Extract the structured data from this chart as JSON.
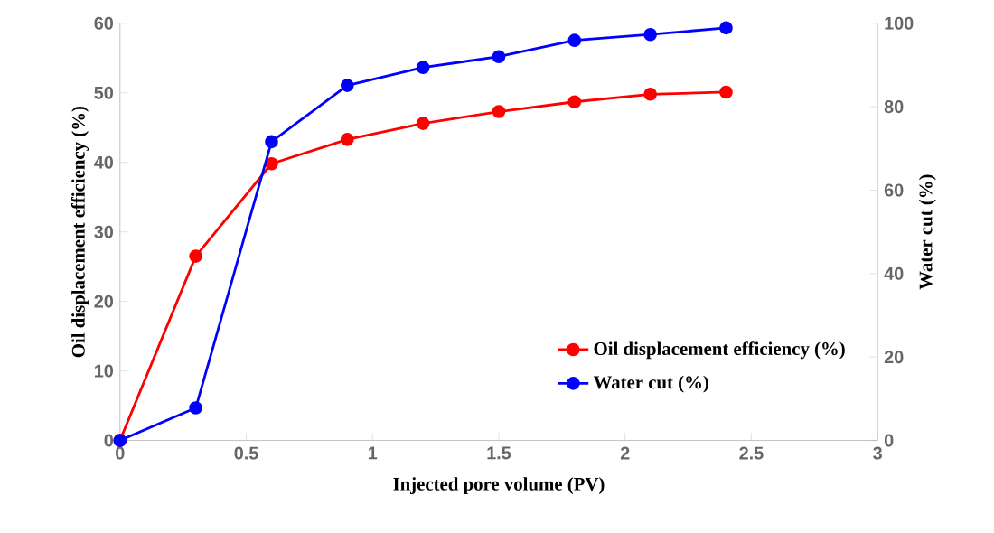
{
  "chart_data": {
    "type": "line",
    "xlabel": "Injected pore volume (PV)",
    "ylabel": "Oil displacement efficiency (%)",
    "y2label": "Water cut (%)",
    "x": [
      0,
      0.3,
      0.6,
      0.9,
      1.2,
      1.5,
      1.8,
      2.1,
      2.4
    ],
    "series": [
      {
        "name": "Oil displacement efficiency (%)",
        "color": "#ff0000",
        "values": [
          0,
          26.5,
          39.8,
          43.3,
          45.6,
          47.3,
          48.7,
          49.8,
          50.1
        ]
      },
      {
        "name": "Water cut (%)",
        "color": "#0000ff",
        "axis": "y2",
        "values": [
          0,
          7.8,
          71.6,
          85.1,
          89.4,
          92.0,
          95.9,
          97.3,
          98.9
        ]
      }
    ],
    "xlim": [
      0,
      3
    ],
    "xticks": [
      0,
      0.5,
      1,
      1.5,
      2,
      2.5,
      3
    ],
    "ylim": [
      0,
      60
    ],
    "yticks": [
      0,
      10,
      20,
      30,
      40,
      50,
      60
    ],
    "y2lim": [
      0,
      100
    ],
    "y2ticks": [
      0,
      20,
      40,
      60,
      80,
      100
    ],
    "grid": false,
    "legend": "bottom right",
    "marker": "circle",
    "line_style": "solid"
  }
}
